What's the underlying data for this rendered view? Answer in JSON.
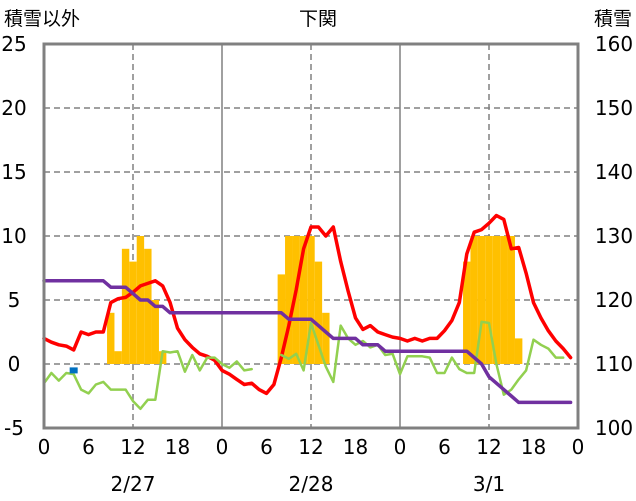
{
  "chart_data": {
    "type": "combo",
    "title": "下関",
    "left_axis": {
      "label": "積雪以外",
      "ylim": [
        -5,
        25
      ],
      "ticks": [
        -5,
        0,
        5,
        10,
        15,
        20,
        25
      ]
    },
    "right_axis": {
      "label": "積雪",
      "ylim": [
        100,
        160
      ],
      "ticks": [
        100,
        110,
        120,
        130,
        140,
        150,
        160
      ]
    },
    "x_axis": {
      "range_hours": [
        0,
        72
      ],
      "tick_labels": [
        "0",
        "6",
        "12",
        "18",
        "0",
        "6",
        "12",
        "18",
        "0",
        "6",
        "12",
        "18",
        "0"
      ],
      "date_labels": [
        {
          "text": "2/27",
          "hour": 12
        },
        {
          "text": "2/28",
          "hour": 36
        },
        {
          "text": "3/1",
          "hour": 60
        }
      ]
    },
    "grid": true,
    "colors": {
      "bars": "#FFC000",
      "red_line": "#FF0000",
      "green_line": "#92D050",
      "purple_line": "#7030A0",
      "blue_marker": "#0070C0",
      "frame": "#808080"
    },
    "series": [
      {
        "type": "bar",
        "color": "#FFC000",
        "axis": "left",
        "points": [
          [
            9,
            4
          ],
          [
            10,
            1
          ],
          [
            11,
            9
          ],
          [
            12,
            8
          ],
          [
            13,
            10
          ],
          [
            14,
            9
          ],
          [
            15,
            5
          ],
          [
            16,
            1
          ],
          [
            32,
            7
          ],
          [
            33,
            10
          ],
          [
            34,
            10
          ],
          [
            35,
            10
          ],
          [
            36,
            10
          ],
          [
            37,
            8
          ],
          [
            38,
            4
          ],
          [
            57,
            8
          ],
          [
            58,
            10
          ],
          [
            59,
            10
          ],
          [
            60,
            10
          ],
          [
            61,
            10
          ],
          [
            62,
            10
          ],
          [
            63,
            10
          ],
          [
            64,
            2
          ]
        ]
      },
      {
        "type": "line",
        "color": "#FF0000",
        "axis": "left",
        "points": [
          [
            0,
            2.0
          ],
          [
            1,
            1.7
          ],
          [
            2,
            1.5
          ],
          [
            3,
            1.4
          ],
          [
            4,
            1.1
          ],
          [
            5,
            2.5
          ],
          [
            6,
            2.3
          ],
          [
            7,
            2.5
          ],
          [
            8,
            2.5
          ],
          [
            9,
            4.8
          ],
          [
            10,
            5.1
          ],
          [
            11,
            5.2
          ],
          [
            12,
            5.6
          ],
          [
            13,
            6.1
          ],
          [
            14,
            6.3
          ],
          [
            15,
            6.5
          ],
          [
            16,
            6.1
          ],
          [
            17,
            4.8
          ],
          [
            18,
            2.8
          ],
          [
            19,
            1.9
          ],
          [
            20,
            1.3
          ],
          [
            21,
            0.8
          ],
          [
            22,
            0.6
          ],
          [
            23,
            0.3
          ],
          [
            24,
            -0.5
          ],
          [
            25,
            -0.8
          ],
          [
            26,
            -1.2
          ],
          [
            27,
            -1.6
          ],
          [
            28,
            -1.5
          ],
          [
            29,
            -2.0
          ],
          [
            30,
            -2.3
          ],
          [
            31,
            -1.6
          ],
          [
            32,
            0.5
          ],
          [
            33,
            3.0
          ],
          [
            34,
            5.8
          ],
          [
            35,
            9.0
          ],
          [
            36,
            10.7
          ],
          [
            37,
            10.7
          ],
          [
            38,
            10.0
          ],
          [
            39,
            10.7
          ],
          [
            40,
            8.0
          ],
          [
            41,
            5.7
          ],
          [
            42,
            3.6
          ],
          [
            43,
            2.7
          ],
          [
            44,
            3.0
          ],
          [
            45,
            2.5
          ],
          [
            46,
            2.3
          ],
          [
            47,
            2.1
          ],
          [
            48,
            2.0
          ],
          [
            49,
            1.8
          ],
          [
            50,
            2.0
          ],
          [
            51,
            1.8
          ],
          [
            52,
            2.0
          ],
          [
            53,
            2.0
          ],
          [
            54,
            2.6
          ],
          [
            55,
            3.4
          ],
          [
            56,
            4.8
          ],
          [
            57,
            8.6
          ],
          [
            58,
            10.3
          ],
          [
            59,
            10.5
          ],
          [
            60,
            11.0
          ],
          [
            61,
            11.6
          ],
          [
            62,
            11.3
          ],
          [
            63,
            9.0
          ],
          [
            64,
            9.1
          ],
          [
            65,
            7.1
          ],
          [
            66,
            4.8
          ],
          [
            67,
            3.6
          ],
          [
            68,
            2.6
          ],
          [
            69,
            1.8
          ],
          [
            70,
            1.2
          ],
          [
            71,
            0.5
          ]
        ]
      },
      {
        "type": "line",
        "color": "#92D050",
        "axis": "left",
        "points": [
          [
            0,
            -1.5
          ],
          [
            1,
            -0.7
          ],
          [
            2,
            -1.3
          ],
          [
            3,
            -0.7
          ],
          [
            4,
            -0.8
          ],
          [
            5,
            -2.0
          ],
          [
            6,
            -2.3
          ],
          [
            7,
            -1.6
          ],
          [
            8,
            -1.4
          ],
          [
            9,
            -2.0
          ],
          [
            10,
            -2.0
          ],
          [
            11,
            -2.0
          ],
          [
            12,
            -2.9
          ],
          [
            13,
            -3.5
          ],
          [
            14,
            -2.8
          ],
          [
            15,
            -2.8
          ],
          [
            16,
            1.0
          ],
          [
            17,
            0.9
          ],
          [
            18,
            1.0
          ],
          [
            19,
            -0.6
          ],
          [
            20,
            0.7
          ],
          [
            21,
            -0.5
          ],
          [
            22,
            0.5
          ],
          [
            23,
            0.5
          ],
          [
            24,
            0.0
          ],
          [
            25,
            -0.3
          ],
          [
            26,
            0.2
          ],
          [
            27,
            -0.5
          ],
          [
            28,
            -0.4
          ],
          [
            32,
            0.7
          ],
          [
            33,
            0.4
          ],
          [
            34,
            0.8
          ],
          [
            35,
            -0.5
          ],
          [
            36,
            3.2
          ],
          [
            37,
            1.5
          ],
          [
            38,
            -0.2
          ],
          [
            39,
            -1.4
          ],
          [
            40,
            3.0
          ],
          [
            41,
            2.0
          ],
          [
            42,
            1.5
          ],
          [
            43,
            1.8
          ],
          [
            44,
            1.3
          ],
          [
            45,
            1.5
          ],
          [
            46,
            0.7
          ],
          [
            47,
            0.8
          ],
          [
            48,
            -0.8
          ],
          [
            49,
            0.6
          ],
          [
            50,
            0.6
          ],
          [
            51,
            0.6
          ],
          [
            52,
            0.5
          ],
          [
            53,
            -0.7
          ],
          [
            54,
            -0.7
          ],
          [
            55,
            0.5
          ],
          [
            56,
            -0.4
          ],
          [
            57,
            -0.7
          ],
          [
            58,
            -0.7
          ],
          [
            59,
            3.3
          ],
          [
            60,
            3.2
          ],
          [
            61,
            0.0
          ],
          [
            62,
            -2.4
          ],
          [
            63,
            -2.0
          ],
          [
            64,
            -1.2
          ],
          [
            65,
            -0.5
          ],
          [
            66,
            1.9
          ],
          [
            67,
            1.5
          ],
          [
            68,
            1.2
          ],
          [
            69,
            0.5
          ],
          [
            70,
            0.5
          ]
        ]
      },
      {
        "type": "line",
        "color": "#7030A0",
        "axis": "right",
        "points": [
          [
            0,
            123
          ],
          [
            8,
            123
          ],
          [
            9,
            122
          ],
          [
            10,
            122
          ],
          [
            11,
            122
          ],
          [
            12,
            121
          ],
          [
            13,
            120
          ],
          [
            14,
            120
          ],
          [
            15,
            119
          ],
          [
            16,
            119
          ],
          [
            17,
            118
          ],
          [
            24,
            118
          ],
          [
            32,
            118
          ],
          [
            33,
            117
          ],
          [
            34,
            117
          ],
          [
            35,
            117
          ],
          [
            36,
            117
          ],
          [
            37,
            116
          ],
          [
            38,
            115
          ],
          [
            39,
            114
          ],
          [
            40,
            114
          ],
          [
            41,
            114
          ],
          [
            42,
            114
          ],
          [
            43,
            113
          ],
          [
            44,
            113
          ],
          [
            45,
            113
          ],
          [
            46,
            112
          ],
          [
            47,
            112
          ],
          [
            48,
            112
          ],
          [
            56,
            112
          ],
          [
            57,
            112
          ],
          [
            58,
            111
          ],
          [
            59,
            110
          ],
          [
            60,
            108
          ],
          [
            61,
            107
          ],
          [
            62,
            106
          ],
          [
            63,
            105
          ],
          [
            64,
            104
          ],
          [
            65,
            104
          ],
          [
            66,
            104
          ],
          [
            67,
            104
          ],
          [
            68,
            104
          ],
          [
            69,
            104
          ],
          [
            70,
            104
          ],
          [
            71,
            104
          ]
        ]
      },
      {
        "type": "marker",
        "color": "#0070C0",
        "axis": "left",
        "points": [
          [
            4,
            -0.5
          ]
        ]
      }
    ]
  }
}
